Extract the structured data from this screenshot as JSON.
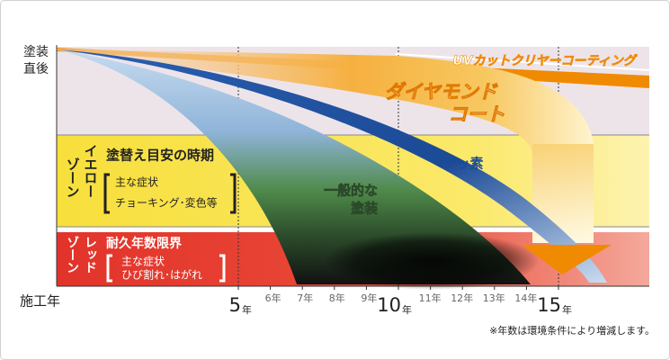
{
  "axis_labels": {
    "top": [
      "塗装",
      "直後"
    ],
    "bottom": "施工年"
  },
  "x_axis": {
    "ticks": [
      5,
      6,
      7,
      8,
      9,
      10,
      11,
      12,
      13,
      14,
      15
    ],
    "unit": "年"
  },
  "zones": [
    {
      "name": [
        "イエロー",
        "ゾーン"
      ],
      "title": "塗替え目安の時期",
      "symptoms_heading": "主な症状",
      "symptoms": "チョーキング･変色等"
    },
    {
      "name": [
        "レッド",
        "ゾーン"
      ],
      "title": "耐久年数限界",
      "symptoms_heading": "主な症状",
      "symptoms": "ひび割れ･はがれ"
    }
  ],
  "curves": [
    {
      "label": [
        "UVカットクリヤーコーティング"
      ]
    },
    {
      "label": [
        "ダイヤモンド",
        "コート"
      ]
    },
    {
      "label": [
        "フッ素"
      ]
    },
    {
      "label": [
        "一般的な",
        "塗装"
      ]
    }
  ],
  "note": "※年数は環境条件により増減します。"
}
